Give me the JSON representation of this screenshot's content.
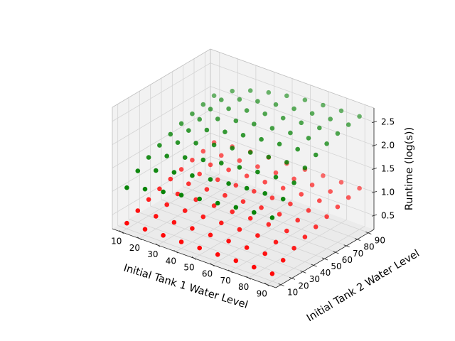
{
  "chart_data": {
    "type": "scatter",
    "projection": "3d",
    "xlabel": "Initial Tank 1 Water Level",
    "ylabel": "Initial Tank 2 Water Level",
    "zlabel": "Runtime (log(s))",
    "xlim": [
      5,
      95
    ],
    "ylim": [
      5,
      95
    ],
    "zlim": [
      0.2,
      2.8
    ],
    "xticks": [
      10,
      20,
      30,
      40,
      50,
      60,
      70,
      80,
      90
    ],
    "yticks": [
      10,
      20,
      30,
      40,
      50,
      60,
      70,
      80,
      90
    ],
    "zticks": [
      0.5,
      1.0,
      1.5,
      2.0,
      2.5
    ],
    "grid": true,
    "pane_color": "#f2f2f2",
    "grid_color": "#d4d4d4",
    "series": [
      {
        "color": "#008000",
        "points": [
          [
            10,
            10,
            1.08
          ],
          [
            20,
            10,
            1.19
          ],
          [
            30,
            10,
            1.27
          ],
          [
            40,
            10,
            1.34
          ],
          [
            50,
            10,
            1.4
          ],
          [
            60,
            10,
            1.45
          ],
          [
            70,
            10,
            1.5
          ],
          [
            80,
            10,
            1.53
          ],
          [
            90,
            10,
            1.56
          ],
          [
            10,
            20,
            1.3
          ],
          [
            20,
            20,
            1.45
          ],
          [
            30,
            20,
            1.55
          ],
          [
            40,
            20,
            1.62
          ],
          [
            50,
            20,
            1.68
          ],
          [
            60,
            20,
            1.73
          ],
          [
            70,
            20,
            1.77
          ],
          [
            80,
            20,
            1.8
          ],
          [
            90,
            20,
            1.82
          ],
          [
            10,
            30,
            1.45
          ],
          [
            20,
            30,
            1.62
          ],
          [
            30,
            30,
            1.73
          ],
          [
            40,
            30,
            1.82
          ],
          [
            50,
            30,
            1.89
          ],
          [
            60,
            30,
            1.94
          ],
          [
            70,
            30,
            1.98
          ],
          [
            80,
            30,
            2.01
          ],
          [
            90,
            30,
            2.03
          ],
          [
            10,
            40,
            1.57
          ],
          [
            20,
            40,
            1.77
          ],
          [
            30,
            40,
            1.9
          ],
          [
            40,
            40,
            2.0
          ],
          [
            50,
            40,
            2.07
          ],
          [
            60,
            40,
            2.12
          ],
          [
            70,
            40,
            2.16
          ],
          [
            80,
            40,
            2.19
          ],
          [
            90,
            40,
            2.21
          ],
          [
            10,
            50,
            1.67
          ],
          [
            20,
            50,
            1.89
          ],
          [
            30,
            50,
            2.04
          ],
          [
            40,
            50,
            2.14
          ],
          [
            50,
            50,
            2.21
          ],
          [
            60,
            50,
            2.26
          ],
          [
            70,
            50,
            2.3
          ],
          [
            80,
            50,
            2.33
          ],
          [
            90,
            50,
            2.35
          ],
          [
            10,
            60,
            1.76
          ],
          [
            20,
            60,
            1.99
          ],
          [
            30,
            60,
            2.14
          ],
          [
            40,
            60,
            2.24
          ],
          [
            50,
            60,
            2.31
          ],
          [
            60,
            60,
            2.36
          ],
          [
            70,
            60,
            2.4
          ],
          [
            80,
            60,
            2.43
          ],
          [
            90,
            60,
            2.45
          ],
          [
            10,
            70,
            1.83
          ],
          [
            20,
            70,
            2.07
          ],
          [
            30,
            70,
            2.22
          ],
          [
            40,
            70,
            2.32
          ],
          [
            50,
            70,
            2.39
          ],
          [
            60,
            70,
            2.44
          ],
          [
            70,
            70,
            2.48
          ],
          [
            80,
            70,
            2.51
          ],
          [
            90,
            70,
            2.53
          ],
          [
            10,
            80,
            1.89
          ],
          [
            20,
            80,
            2.13
          ],
          [
            30,
            80,
            2.28
          ],
          [
            40,
            80,
            2.38
          ],
          [
            50,
            80,
            2.45
          ],
          [
            60,
            80,
            2.5
          ],
          [
            70,
            80,
            2.54
          ],
          [
            80,
            80,
            2.56
          ],
          [
            90,
            80,
            2.58
          ],
          [
            10,
            90,
            1.94
          ],
          [
            20,
            90,
            2.18
          ],
          [
            30,
            90,
            2.33
          ],
          [
            40,
            90,
            2.43
          ],
          [
            50,
            90,
            2.5
          ],
          [
            60,
            90,
            2.55
          ],
          [
            70,
            90,
            2.58
          ],
          [
            80,
            90,
            2.6
          ],
          [
            90,
            90,
            2.62
          ]
        ]
      },
      {
        "color": "#ff0000",
        "points": [
          [
            10,
            10,
            0.32
          ],
          [
            20,
            10,
            0.33
          ],
          [
            30,
            10,
            0.34
          ],
          [
            40,
            10,
            0.34
          ],
          [
            50,
            10,
            0.35
          ],
          [
            60,
            10,
            0.35
          ],
          [
            70,
            10,
            0.36
          ],
          [
            80,
            10,
            0.36
          ],
          [
            90,
            10,
            0.36
          ],
          [
            10,
            20,
            0.45
          ],
          [
            20,
            20,
            0.47
          ],
          [
            30,
            20,
            0.48
          ],
          [
            40,
            20,
            0.49
          ],
          [
            50,
            20,
            0.49
          ],
          [
            60,
            20,
            0.5
          ],
          [
            70,
            20,
            0.5
          ],
          [
            80,
            20,
            0.51
          ],
          [
            90,
            20,
            0.51
          ],
          [
            10,
            30,
            0.55
          ],
          [
            20,
            30,
            0.58
          ],
          [
            30,
            30,
            0.59
          ],
          [
            40,
            30,
            0.6
          ],
          [
            50,
            30,
            0.61
          ],
          [
            60,
            30,
            0.61
          ],
          [
            70,
            30,
            0.62
          ],
          [
            80,
            30,
            0.62
          ],
          [
            90,
            30,
            0.63
          ],
          [
            10,
            40,
            0.64
          ],
          [
            20,
            40,
            0.67
          ],
          [
            30,
            40,
            0.69
          ],
          [
            40,
            40,
            0.7
          ],
          [
            50,
            40,
            0.71
          ],
          [
            60,
            40,
            0.71
          ],
          [
            70,
            40,
            0.72
          ],
          [
            80,
            40,
            0.72
          ],
          [
            90,
            40,
            0.73
          ],
          [
            10,
            50,
            0.71
          ],
          [
            20,
            50,
            0.75
          ],
          [
            30,
            50,
            0.77
          ],
          [
            40,
            50,
            0.78
          ],
          [
            50,
            50,
            0.79
          ],
          [
            60,
            50,
            0.8
          ],
          [
            70,
            50,
            0.8
          ],
          [
            80,
            50,
            0.81
          ],
          [
            90,
            50,
            0.81
          ],
          [
            10,
            60,
            0.78
          ],
          [
            20,
            60,
            0.82
          ],
          [
            30,
            60,
            0.84
          ],
          [
            40,
            60,
            0.86
          ],
          [
            50,
            60,
            0.87
          ],
          [
            60,
            60,
            0.87
          ],
          [
            70,
            60,
            0.88
          ],
          [
            80,
            60,
            0.88
          ],
          [
            90,
            60,
            0.89
          ],
          [
            10,
            70,
            0.84
          ],
          [
            20,
            70,
            0.88
          ],
          [
            30,
            70,
            0.91
          ],
          [
            40,
            70,
            0.92
          ],
          [
            50,
            70,
            0.93
          ],
          [
            60,
            70,
            0.94
          ],
          [
            70,
            70,
            0.95
          ],
          [
            80,
            70,
            0.95
          ],
          [
            90,
            70,
            0.96
          ],
          [
            10,
            80,
            0.89
          ],
          [
            20,
            80,
            0.94
          ],
          [
            30,
            80,
            0.97
          ],
          [
            40,
            80,
            0.98
          ],
          [
            50,
            80,
            0.99
          ],
          [
            60,
            80,
            1.0
          ],
          [
            70,
            80,
            1.01
          ],
          [
            80,
            80,
            1.01
          ],
          [
            90,
            80,
            1.02
          ],
          [
            10,
            90,
            0.94
          ],
          [
            20,
            90,
            0.99
          ],
          [
            30,
            90,
            1.02
          ],
          [
            40,
            90,
            1.04
          ],
          [
            50,
            90,
            1.05
          ],
          [
            60,
            90,
            1.06
          ],
          [
            70,
            90,
            1.07
          ],
          [
            80,
            90,
            1.07
          ],
          [
            90,
            90,
            1.08
          ]
        ]
      }
    ]
  }
}
